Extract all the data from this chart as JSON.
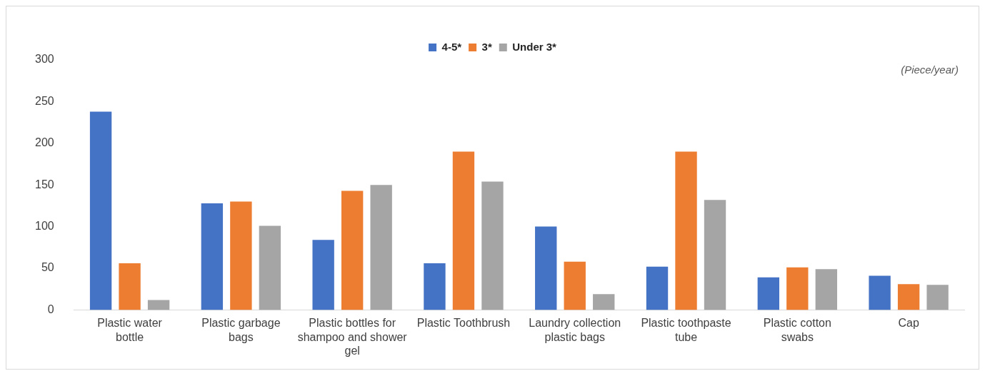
{
  "chart_data": {
    "type": "bar",
    "categories": [
      "Plastic water bottle",
      "Plastic garbage bags",
      "Plastic bottles for shampoo and shower gel",
      "Plastic Toothbrush",
      "Laundry collection plastic bags",
      "Plastic toothpaste tube",
      "Plastic cotton swabs",
      "Cap"
    ],
    "series": [
      {
        "name": "4-5*",
        "color": "#4472c4",
        "values": [
          238,
          128,
          84,
          56,
          100,
          52,
          39,
          41
        ]
      },
      {
        "name": "3*",
        "color": "#ed7d31",
        "values": [
          56,
          130,
          143,
          190,
          58,
          190,
          51,
          31
        ]
      },
      {
        "name": "Under 3*",
        "color": "#a5a5a5",
        "values": [
          12,
          101,
          150,
          154,
          19,
          132,
          49,
          30
        ]
      }
    ],
    "ylim": [
      0,
      300
    ],
    "yticks": [
      0,
      50,
      100,
      150,
      200,
      250,
      300
    ],
    "grid": false,
    "legend": "top",
    "annotations": [
      "(Piece/year)"
    ]
  }
}
